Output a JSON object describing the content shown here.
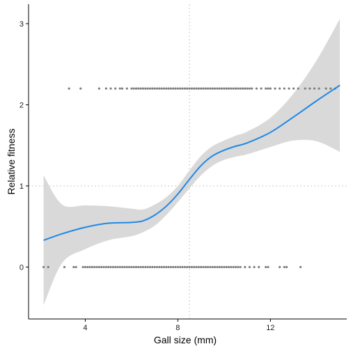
{
  "chart_data": {
    "type": "scatter",
    "title": "",
    "xlabel": "Gall size (mm)",
    "ylabel": "Relative fitness",
    "xlim": [
      1.55,
      15.3
    ],
    "ylim": [
      -0.64,
      3.24
    ],
    "x_ticks": [
      4,
      8,
      12
    ],
    "y_ticks": [
      0,
      1,
      2,
      3
    ],
    "x_tick_labels": [
      "4",
      "8",
      "12"
    ],
    "y_tick_labels": [
      "0",
      "1",
      "2",
      "3"
    ],
    "grid": false,
    "reference_lines": {
      "x": 8.5,
      "y": 1
    },
    "colors": {
      "points": "#808080",
      "smooth": "#1e88e5",
      "ribbon": "#d9d9d9",
      "reference": "#c8c8c8",
      "axis": "#000000"
    },
    "smooth": {
      "method": "loess",
      "x": [
        2.2,
        3,
        4,
        5,
        6,
        6.5,
        7,
        7.5,
        8,
        8.5,
        9,
        9.5,
        10,
        10.5,
        11,
        12,
        13,
        14,
        15
      ],
      "y": [
        0.33,
        0.41,
        0.49,
        0.54,
        0.55,
        0.57,
        0.64,
        0.75,
        0.9,
        1.08,
        1.25,
        1.37,
        1.44,
        1.49,
        1.53,
        1.66,
        1.85,
        2.05,
        2.24
      ],
      "lower": [
        -0.47,
        0.05,
        0.22,
        0.33,
        0.38,
        0.43,
        0.51,
        0.64,
        0.8,
        0.97,
        1.13,
        1.25,
        1.32,
        1.36,
        1.39,
        1.48,
        1.56,
        1.55,
        1.42
      ],
      "upper": [
        1.13,
        0.77,
        0.76,
        0.75,
        0.72,
        0.71,
        0.77,
        0.86,
        1.0,
        1.19,
        1.37,
        1.49,
        1.56,
        1.62,
        1.67,
        1.84,
        2.14,
        2.55,
        3.06
      ]
    },
    "series": [
      {
        "y": 0,
        "x": [
          2.2,
          2.4,
          3.1,
          3.5,
          3.6,
          3.9,
          4.0,
          4.1,
          4.2,
          4.3,
          4.4,
          4.5,
          4.6,
          4.7,
          4.8,
          4.9,
          5.0,
          5.1,
          5.2,
          5.3,
          5.4,
          5.5,
          5.6,
          5.7,
          5.8,
          5.9,
          6.0,
          6.1,
          6.2,
          6.3,
          6.4,
          6.5,
          6.6,
          6.7,
          6.8,
          6.9,
          7.0,
          7.1,
          7.2,
          7.3,
          7.4,
          7.5,
          7.6,
          7.7,
          7.8,
          7.9,
          8.0,
          8.1,
          8.2,
          8.3,
          8.4,
          8.5,
          8.6,
          8.7,
          8.8,
          8.9,
          9.0,
          9.1,
          9.2,
          9.3,
          9.4,
          9.5,
          9.6,
          9.7,
          9.8,
          9.9,
          10.0,
          10.1,
          10.2,
          10.3,
          10.4,
          10.5,
          10.6,
          10.7,
          10.9,
          11.1,
          11.3,
          11.5,
          11.8,
          11.9,
          12.4,
          12.6,
          12.7,
          13.3
        ]
      },
      {
        "y": 2.2,
        "x": [
          3.3,
          3.8,
          4.6,
          4.9,
          5.1,
          5.3,
          5.5,
          5.6,
          5.8,
          6.0,
          6.1,
          6.2,
          6.3,
          6.4,
          6.5,
          6.6,
          6.7,
          6.8,
          6.9,
          7.0,
          7.1,
          7.2,
          7.3,
          7.4,
          7.5,
          7.6,
          7.7,
          7.8,
          7.9,
          8.0,
          8.1,
          8.2,
          8.3,
          8.4,
          8.5,
          8.6,
          8.7,
          8.8,
          8.9,
          9.0,
          9.1,
          9.2,
          9.3,
          9.4,
          9.5,
          9.6,
          9.7,
          9.8,
          9.9,
          10.0,
          10.1,
          10.2,
          10.3,
          10.4,
          10.5,
          10.6,
          10.7,
          10.8,
          10.9,
          11.0,
          11.1,
          11.2,
          11.4,
          11.6,
          11.8,
          11.9,
          12.0,
          12.2,
          12.4,
          12.6,
          12.8,
          13.0,
          13.2,
          13.5,
          13.7,
          13.9,
          14.1,
          14.4,
          14.6,
          14.8
        ]
      }
    ]
  }
}
